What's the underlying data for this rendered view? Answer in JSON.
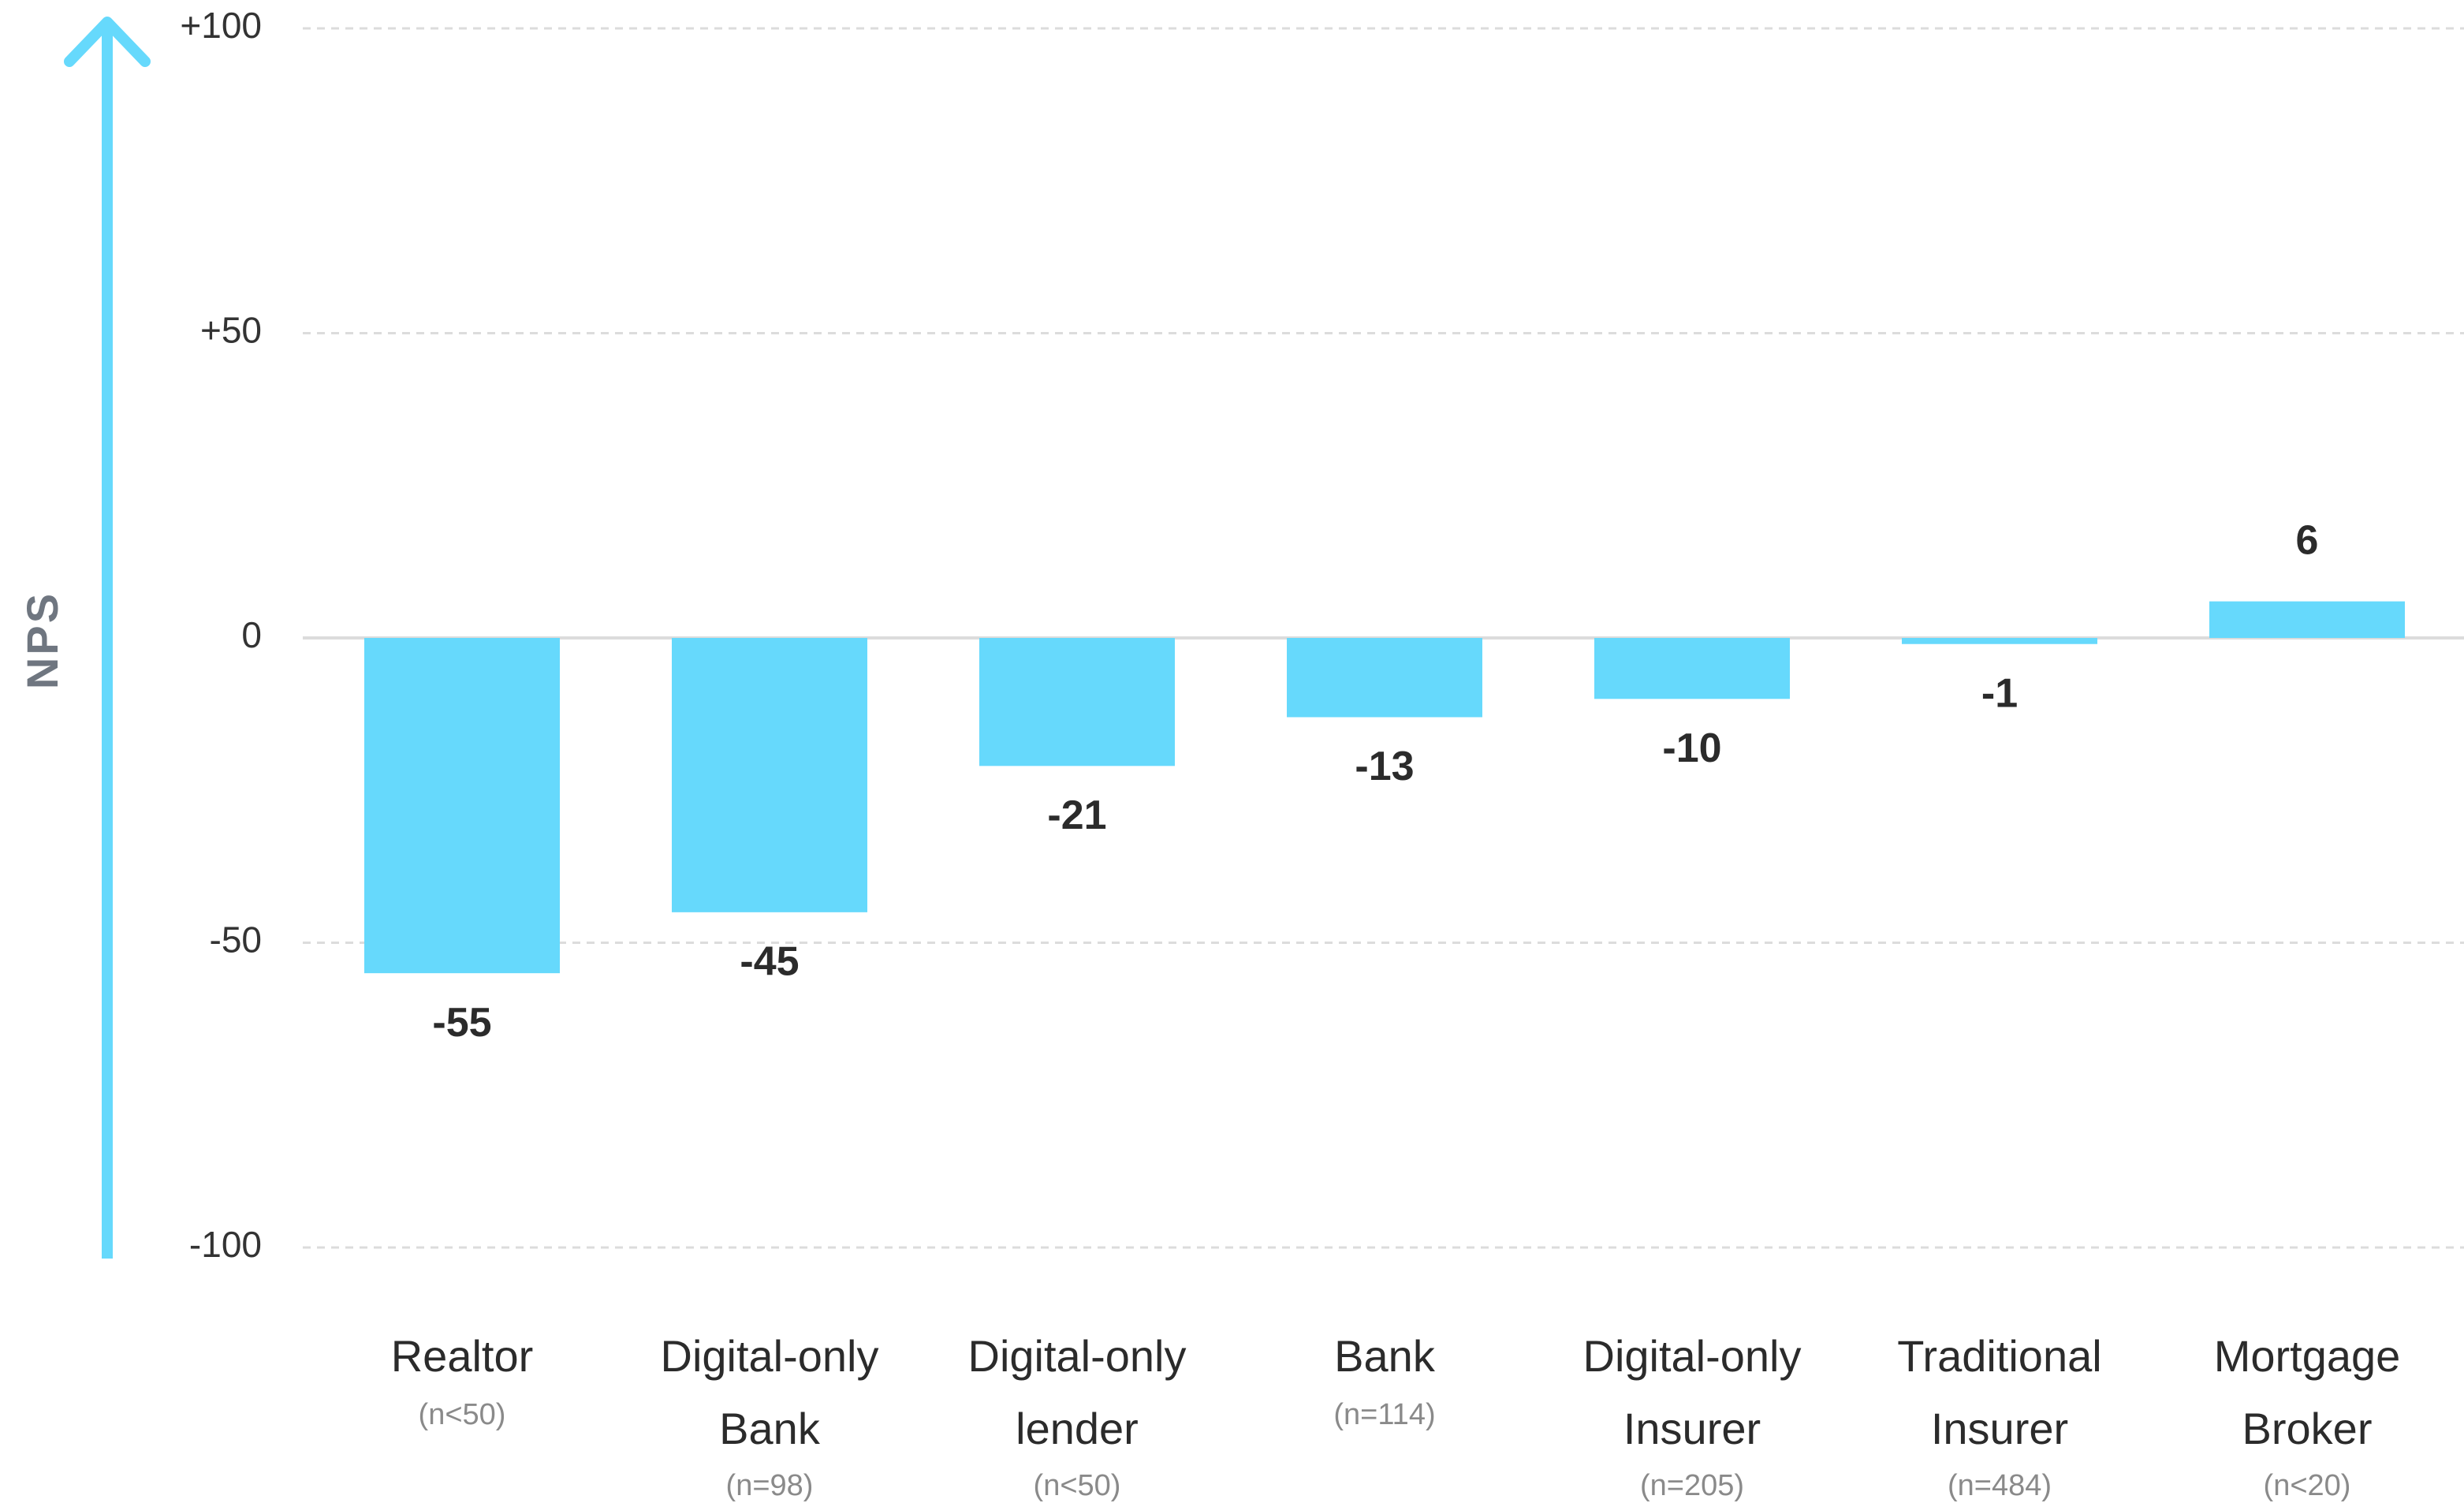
{
  "chart_data": {
    "type": "bar",
    "y_axis_label": "NPS",
    "categories": [
      "Realtor",
      "Digital-only Bank",
      "Digital-only lender",
      "Bank",
      "Digital-only Insurer",
      "Traditional Insurer",
      "Mortgage Broker"
    ],
    "sample_sizes": [
      "(n<50)",
      "(n=98)",
      "(n<50)",
      "(n=114)",
      "(n=205)",
      "(n=484)",
      "(n<20)"
    ],
    "values": [
      -55,
      -45,
      -21,
      -13,
      -10,
      -1,
      6
    ],
    "color": "#66d9fc",
    "ylim": [
      -100,
      100
    ],
    "yticks": [
      {
        "value": 100,
        "label": "+100"
      },
      {
        "value": 50,
        "label": "+50"
      },
      0,
      -50,
      -100
    ],
    "grid": true
  }
}
